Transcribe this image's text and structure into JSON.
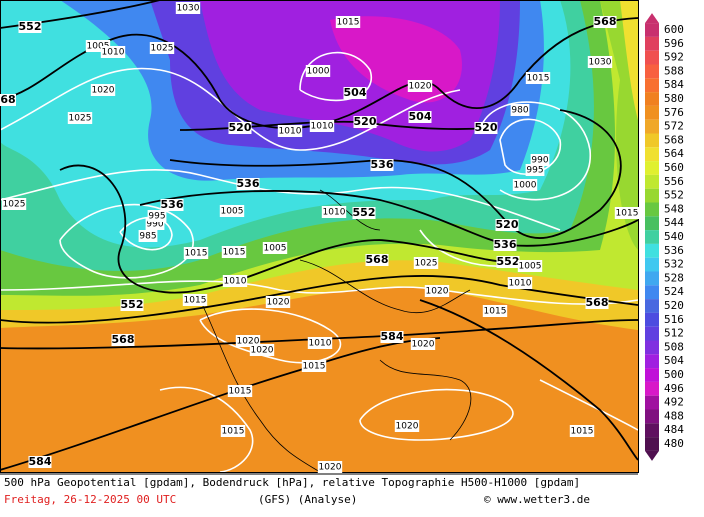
{
  "map": {
    "legend": {
      "labels": [
        600,
        596,
        592,
        588,
        584,
        580,
        576,
        572,
        568,
        564,
        560,
        556,
        552,
        548,
        544,
        540,
        536,
        532,
        528,
        524,
        520,
        516,
        512,
        508,
        504,
        500,
        496,
        492,
        488,
        484,
        480
      ],
      "colors": [
        "#c8306e",
        "#e0405e",
        "#f05050",
        "#f86040",
        "#f87030",
        "#f08020",
        "#f09020",
        "#f0a828",
        "#f0c828",
        "#f0e030",
        "#e0f030",
        "#c0e830",
        "#98d830",
        "#68c840",
        "#48c060",
        "#40d0a0",
        "#40e0e0",
        "#40c8f0",
        "#40a8f0",
        "#4088f0",
        "#4868e0",
        "#4c4ce0",
        "#6040e0",
        "#8030e0",
        "#a020e0",
        "#c010d8",
        "#d818c8",
        "#a010a0",
        "#801080",
        "#601060",
        "#501050"
      ]
    },
    "geopotential_labels": [
      "552",
      "68",
      "520",
      "504",
      "520",
      "504",
      "520",
      "536",
      "536",
      "536",
      "552",
      "520",
      "536",
      "552",
      "568",
      "568",
      "552",
      "568",
      "584",
      "584",
      "568"
    ],
    "isobar_labels": [
      "1025",
      "1020",
      "1025",
      "1005",
      "1010",
      "1025",
      "1030",
      "1015",
      "1000",
      "1010",
      "1010",
      "1020",
      "1030",
      "1015",
      "980",
      "990",
      "995",
      "1000",
      "1005",
      "1010",
      "1015",
      "1015",
      "985",
      "990",
      "995",
      "1015",
      "1020",
      "1020",
      "1020",
      "1010",
      "1015",
      "1020",
      "1025",
      "1015",
      "1020",
      "1015",
      "1015",
      "1020",
      "1015",
      "1020",
      "1010",
      "1005",
      "1015",
      "1010",
      "1005"
    ],
    "caption": "500 hPa Geopotential [gpdam], Bodendruck [hPa], relative Topographie H500-H1000 [gpdam]",
    "date": "Freitag, 26-12-2025  00 UTC",
    "model": "(GFS)  (Analyse)",
    "credit": "© www.wetter3.de"
  }
}
